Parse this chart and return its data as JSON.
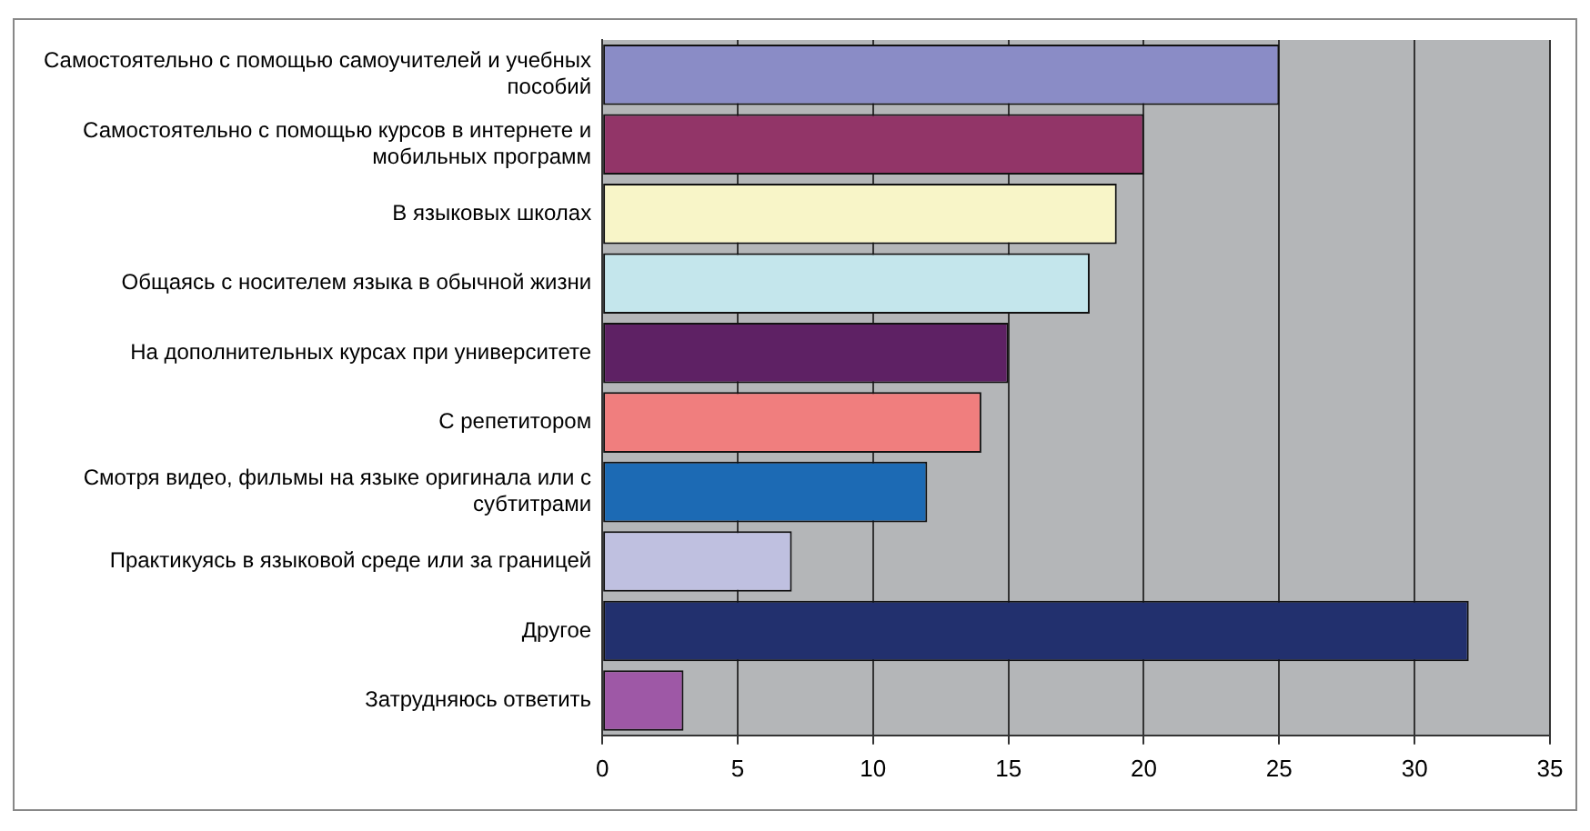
{
  "chart_data": {
    "type": "bar",
    "orientation": "horizontal",
    "categories": [
      "Самостоятельно с помощью самоучителей и учебных пособий",
      "Самостоятельно с помощью курсов в интернете и мобильных программ",
      "В языковых школах",
      "Общаясь с носителем языка в обычной жизни",
      "На дополнительных курсах при университете",
      "С репетитором",
      "Смотря видео, фильмы на языке оригинала или с субтитрами",
      "Практикуясь в языковой среде или за границей",
      "Другое",
      "Затрудняюсь ответить"
    ],
    "values": [
      25,
      20,
      19,
      18,
      15,
      14,
      12,
      7,
      32,
      3
    ],
    "colors": [
      "#8a8cc6",
      "#923568",
      "#f8f5c8",
      "#c4e6ec",
      "#5e2164",
      "#f07e7e",
      "#1c6ab4",
      "#bfc0e0",
      "#22306e",
      "#9e58a6"
    ],
    "xlim": [
      0,
      35
    ],
    "xticks": [
      0,
      5,
      10,
      15,
      20,
      25,
      30,
      35
    ],
    "grid": "x"
  }
}
